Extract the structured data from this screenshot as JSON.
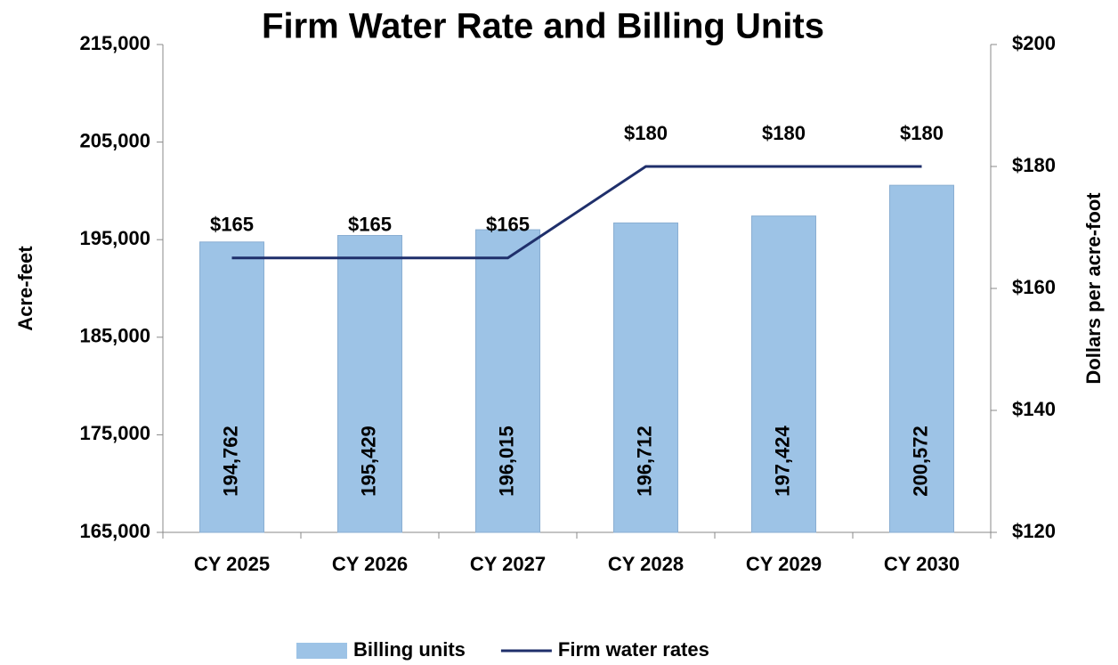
{
  "chart_data": {
    "type": "bar",
    "title": "Firm Water Rate and Billing Units",
    "y_label": "Acre-feet",
    "y2_label": "Dollars per acre-foot",
    "categories": [
      "CY 2025",
      "CY 2026",
      "CY 2027",
      "CY 2028",
      "CY 2029",
      "CY 2030"
    ],
    "series": [
      {
        "name": "Billing units",
        "type": "bar",
        "color": "#9dc3e6",
        "values": [
          194762,
          195429,
          196015,
          196712,
          197424,
          200572
        ],
        "value_labels": [
          "194,762",
          "195,429",
          "196,015",
          "196,712",
          "197,424",
          "200,572"
        ]
      },
      {
        "name": "Firm water rates",
        "type": "line",
        "color": "#1f2f6b",
        "axis": "y2",
        "values": [
          165,
          165,
          165,
          180,
          180,
          180
        ],
        "value_labels": [
          "$165",
          "$165",
          "$165",
          "$180",
          "$180",
          "$180"
        ]
      }
    ],
    "ylim": [
      165000,
      215000
    ],
    "yticks": [
      {
        "value": 165000,
        "label": "165,000"
      },
      {
        "value": 175000,
        "label": "175,000"
      },
      {
        "value": 185000,
        "label": "185,000"
      },
      {
        "value": 195000,
        "label": "195,000"
      },
      {
        "value": 205000,
        "label": "205,000"
      },
      {
        "value": 215000,
        "label": "215,000"
      }
    ],
    "y2lim": [
      120,
      200
    ],
    "y2ticks": [
      {
        "value": 120,
        "label": "$120"
      },
      {
        "value": 140,
        "label": "$140"
      },
      {
        "value": 160,
        "label": "$160"
      },
      {
        "value": 180,
        "label": "$180"
      },
      {
        "value": 200,
        "label": "$200"
      }
    ],
    "grid": false,
    "legend": "bottom"
  }
}
